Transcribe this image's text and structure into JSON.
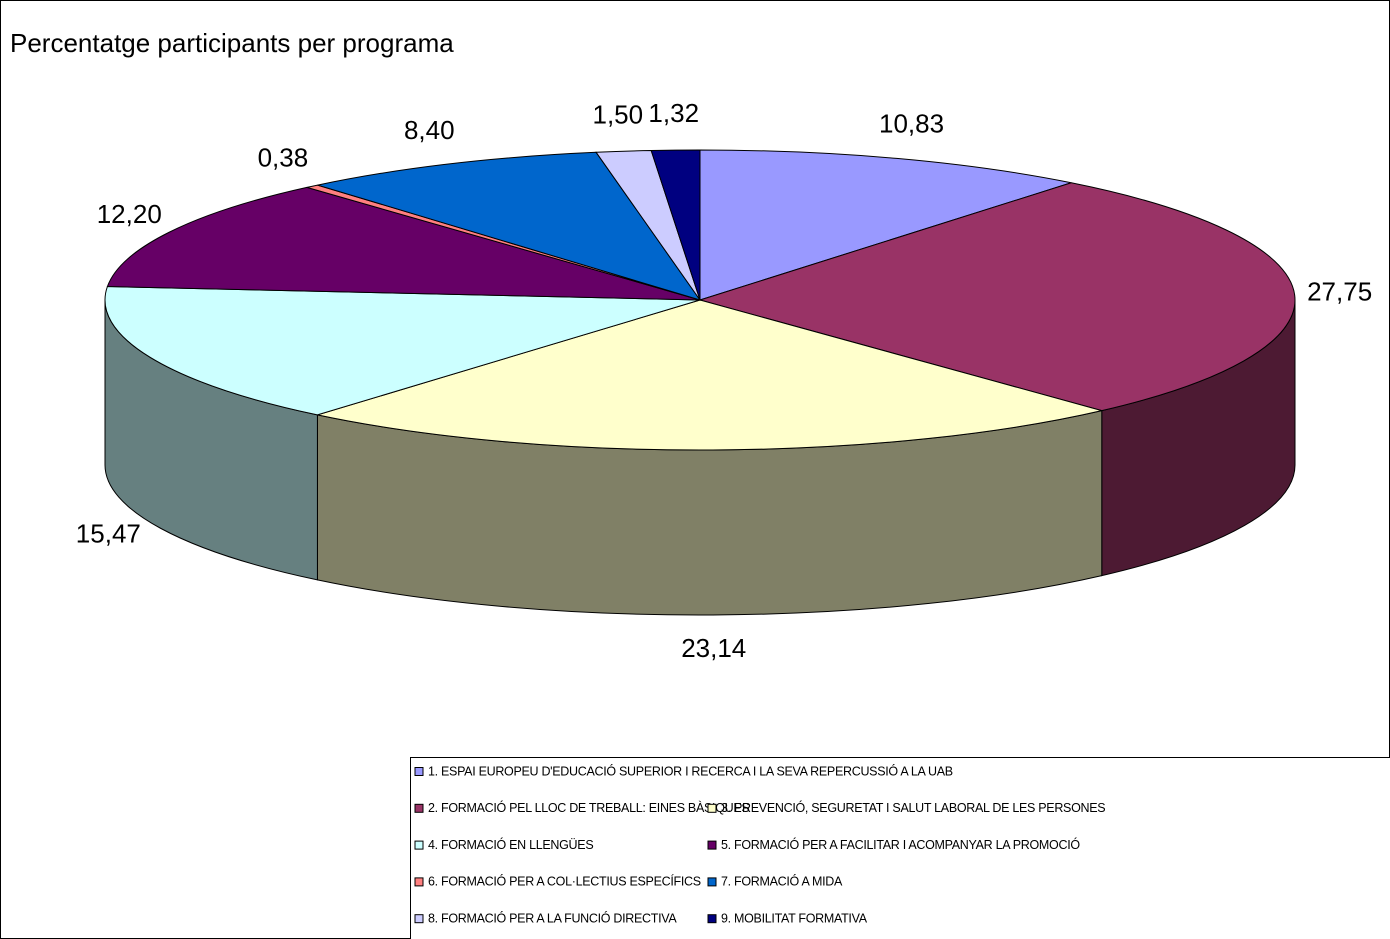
{
  "chart_data": {
    "type": "pie3d",
    "title": "Percentatge participants per programa",
    "categories": [
      "1. ESPAI EUROPEU D'EDUCACIÓ SUPERIOR I RECERCA I LA SEVA REPERCUSSIÓ A LA UAB",
      "2. FORMACIÓ PEL LLOC DE TREBALL: EINES BÀSIQUES",
      "3. PREVENCIÓ, SEGURETAT I SALUT LABORAL DE LES PERSONES",
      "4. FORMACIÓ EN LLENGÜES",
      "5. FORMACIÓ PER A FACILITAR I ACOMPANYAR LA PROMOCIÓ",
      "6. FORMACIÓ PER A COL·LECTIUS ESPECÍFICS",
      "7. FORMACIÓ A MIDA",
      "8. FORMACIÓ PER A LA FUNCIÓ DIRECTIVA",
      "9. MOBILITAT FORMATIVA"
    ],
    "values": [
      10.83,
      27.75,
      23.14,
      15.47,
      12.2,
      0.38,
      8.4,
      1.5,
      1.32
    ],
    "value_labels": [
      "10,83",
      "27,75",
      "23,14",
      "15,47",
      "12,20",
      "0,38",
      "8,40",
      "1,50",
      "1,32"
    ],
    "colors": [
      "#9999ff",
      "#993366",
      "#ffffcc",
      "#ccffff",
      "#660066",
      "#ff8080",
      "#0066cc",
      "#ccccff",
      "#000080"
    ],
    "legend": "bottom"
  }
}
